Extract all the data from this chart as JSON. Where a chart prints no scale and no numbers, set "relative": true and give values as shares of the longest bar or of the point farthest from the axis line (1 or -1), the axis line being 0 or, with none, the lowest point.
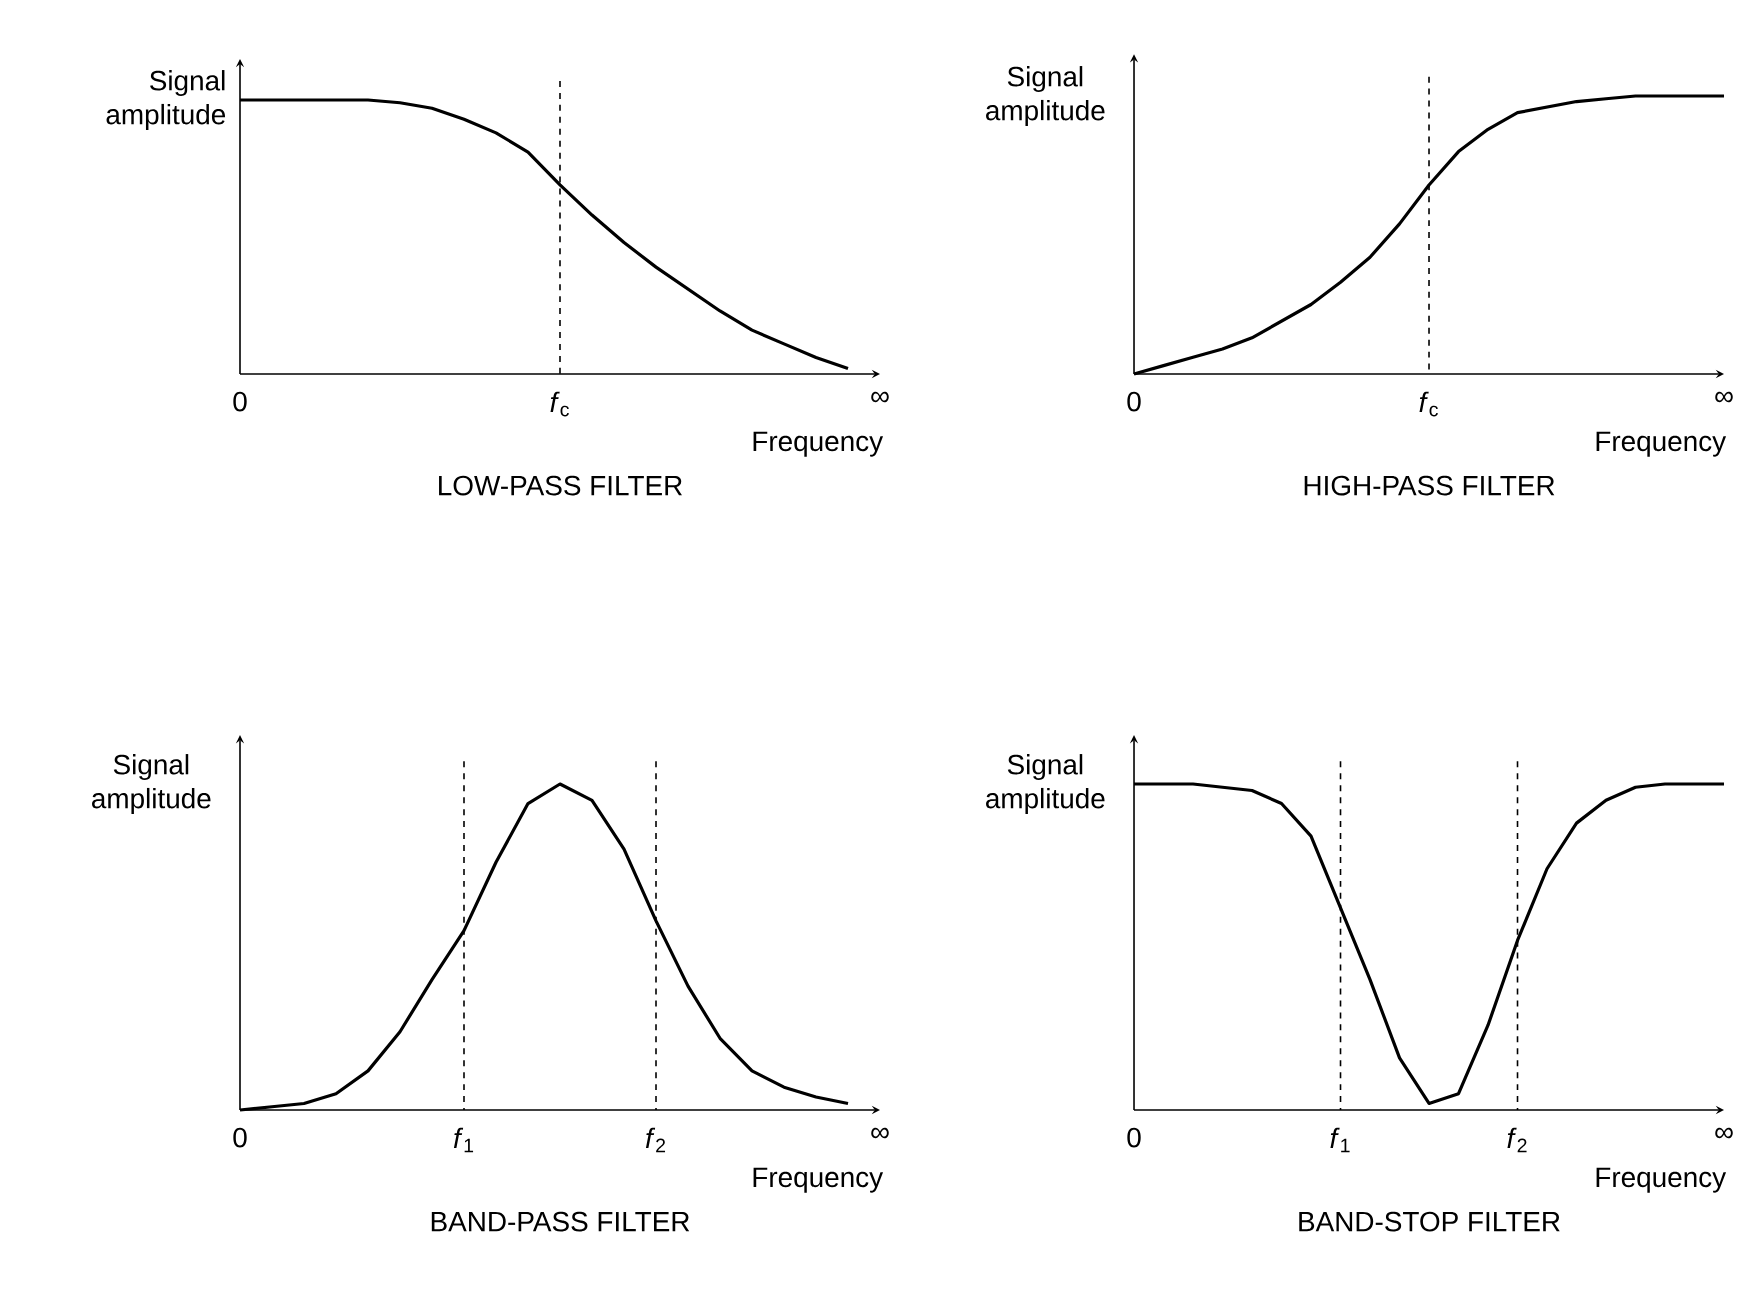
{
  "chart_data": [
    {
      "type": "line",
      "title": "LOW-PASS FILTER",
      "xlabel": "Frequency",
      "ylabel": "Signal amplitude",
      "relative": true,
      "categories": [
        "0",
        null,
        null,
        null,
        null,
        null,
        null,
        null,
        null,
        null,
        "*f*$_{c}$",
        null,
        null,
        null,
        null,
        null,
        null,
        null,
        null,
        null,
        "∞"
      ],
      "ref_lines": [
        {
          "axis": "x",
          "value": "*f*$_{c}$",
          "line_style": "dashed"
        }
      ],
      "marker": "none",
      "series": [
        {
          "color": "#000000",
          "values": [
            1,
            1,
            1,
            1,
            1,
            0.99,
            0.97,
            0.93,
            0.88,
            0.81,
            0.69,
            0.58,
            0.48,
            0.39,
            0.31,
            0.23,
            0.16,
            0.11,
            0.06,
            0.02,
            null
          ]
        }
      ]
    },
    {
      "type": "line",
      "title": "HIGH-PASS FILTER",
      "xlabel": "Frequency",
      "ylabel": "Signal amplitude",
      "relative": true,
      "categories": [
        "0",
        null,
        null,
        null,
        null,
        null,
        null,
        null,
        null,
        null,
        "*f*$_{c}$",
        null,
        null,
        null,
        null,
        null,
        null,
        null,
        null,
        null,
        "∞"
      ],
      "ref_lines": [
        {
          "axis": "x",
          "value": "*f*$_{c}$",
          "line_style": "dashed"
        }
      ],
      "marker": "none",
      "series": [
        {
          "color": "#000000",
          "values": [
            0,
            0.03,
            0.06,
            0.09,
            0.13,
            0.19,
            0.25,
            0.33,
            0.42,
            0.54,
            0.68,
            0.8,
            0.88,
            0.94,
            0.96,
            0.98,
            0.99,
            1,
            1,
            1,
            1
          ]
        }
      ]
    },
    {
      "type": "line",
      "title": "BAND-PASS FILTER",
      "xlabel": "Frequency",
      "ylabel": "Signal amplitude",
      "relative": true,
      "categories": [
        "0",
        null,
        null,
        null,
        null,
        null,
        null,
        "*f*$_{1}$",
        null,
        null,
        null,
        null,
        null,
        "*f*$_{2}$",
        null,
        null,
        null,
        null,
        null,
        null,
        "∞"
      ],
      "ref_lines": [
        {
          "axis": "x",
          "value": "*f*$_{1}$",
          "line_style": "dashed"
        },
        {
          "axis": "x",
          "value": "*f*$_{2}$",
          "line_style": "dashed"
        }
      ],
      "marker": "none",
      "series": [
        {
          "color": "#000000",
          "values": [
            0,
            0.01,
            0.02,
            0.05,
            0.12,
            0.24,
            0.4,
            0.55,
            0.76,
            0.94,
            1,
            0.95,
            0.8,
            0.58,
            0.38,
            0.22,
            0.12,
            0.07,
            0.04,
            0.02,
            null
          ]
        }
      ]
    },
    {
      "type": "line",
      "title": "BAND-STOP FILTER",
      "xlabel": "Frequency",
      "ylabel": "Signal amplitude",
      "relative": true,
      "categories": [
        "0",
        null,
        null,
        null,
        null,
        null,
        null,
        "*f*$_{1}$",
        null,
        null,
        null,
        null,
        null,
        "*f*$_{2}$",
        null,
        null,
        null,
        null,
        null,
        null,
        "∞"
      ],
      "ref_lines": [
        {
          "axis": "x",
          "value": "*f*$_{1}$",
          "line_style": "dashed"
        },
        {
          "axis": "x",
          "value": "*f*$_{2}$",
          "line_style": "dashed"
        }
      ],
      "marker": "none",
      "series": [
        {
          "color": "#000000",
          "values": [
            1,
            1,
            1,
            0.99,
            0.98,
            0.94,
            0.84,
            0.62,
            0.4,
            0.16,
            0.02,
            0.05,
            0.26,
            0.52,
            0.74,
            0.88,
            0.95,
            0.99,
            1,
            1,
            1
          ]
        }
      ]
    }
  ]
}
